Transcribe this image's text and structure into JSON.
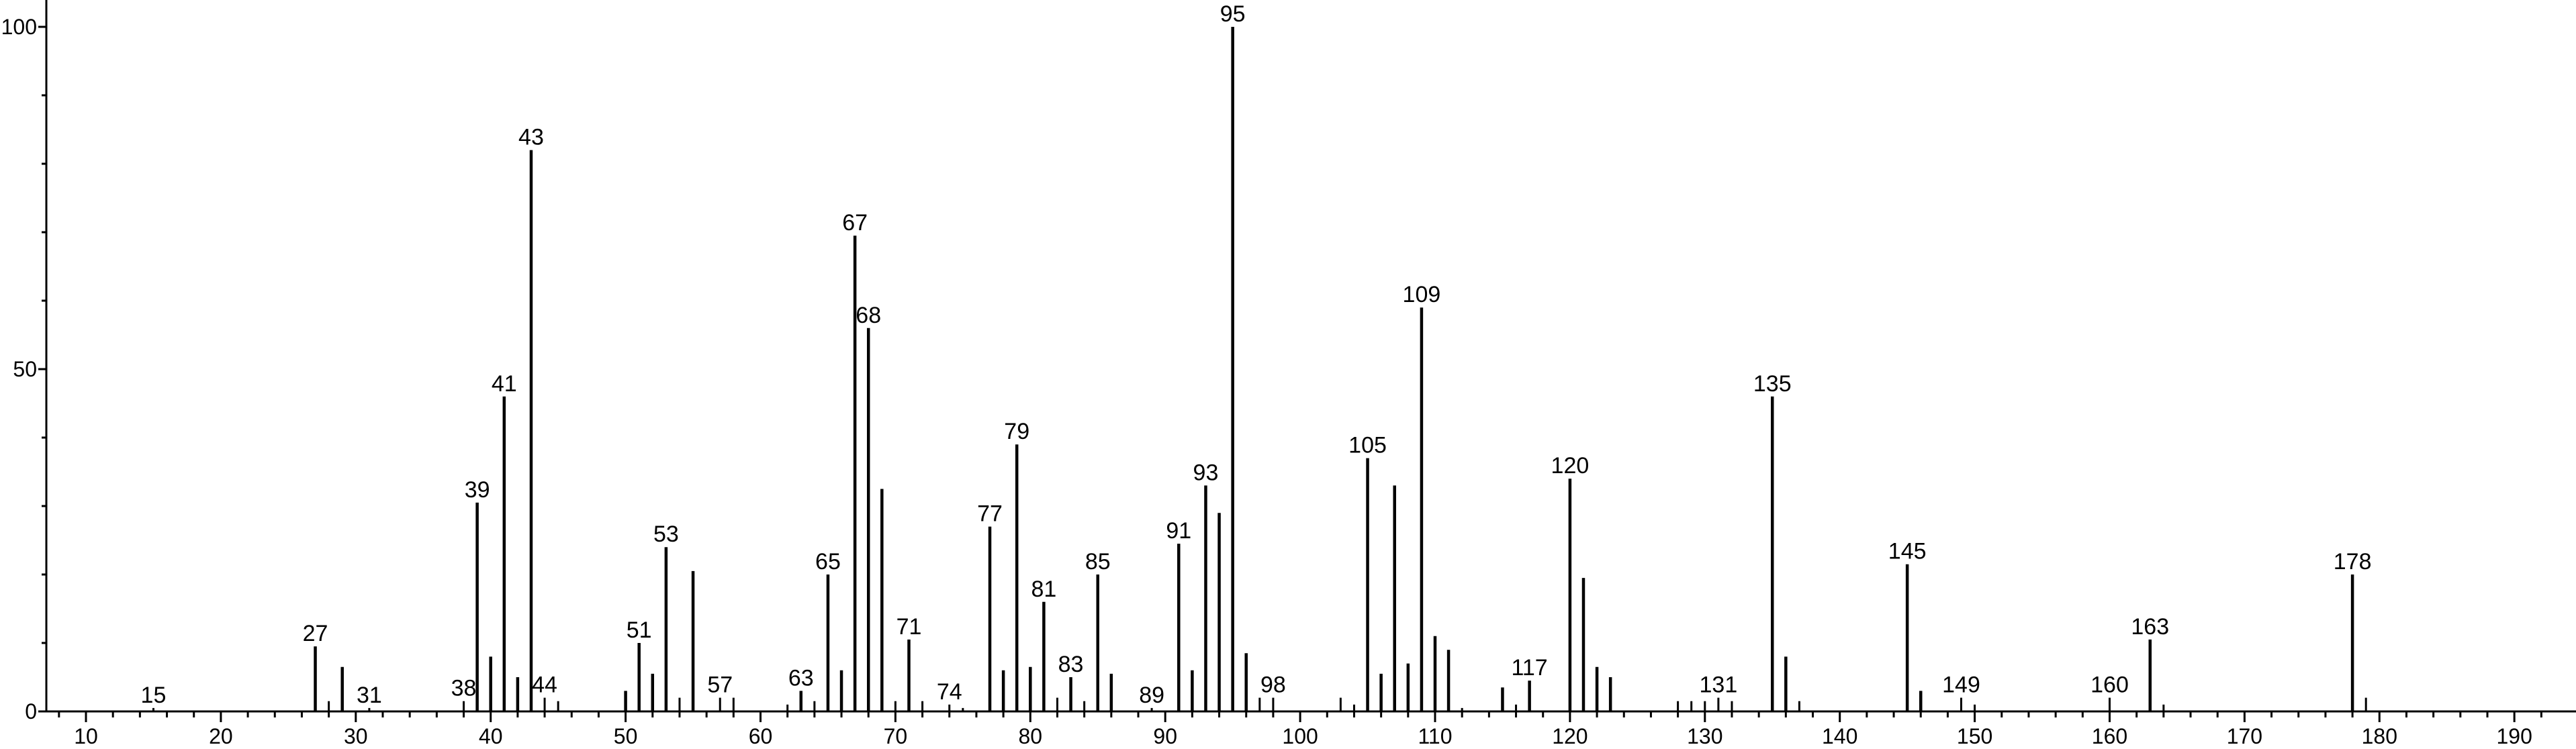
{
  "chart_data": {
    "type": "bar",
    "title": "",
    "xlabel": "",
    "ylabel": "",
    "xlim": [
      7,
      193
    ],
    "ylim": [
      0,
      100
    ],
    "grid": false,
    "x_ticks": [
      10,
      20,
      30,
      40,
      50,
      60,
      70,
      80,
      90,
      100,
      110,
      120,
      130,
      140,
      150,
      160,
      170,
      180,
      190
    ],
    "y_ticks": [
      0,
      50,
      100
    ],
    "peaks": [
      {
        "mz": 15,
        "intensity": 0.5,
        "label": "15"
      },
      {
        "mz": 27,
        "intensity": 9.5,
        "label": "27"
      },
      {
        "mz": 28,
        "intensity": 1.5
      },
      {
        "mz": 29,
        "intensity": 6.5
      },
      {
        "mz": 31,
        "intensity": 0.5,
        "label": "31"
      },
      {
        "mz": 38,
        "intensity": 1.5,
        "label": "38"
      },
      {
        "mz": 39,
        "intensity": 30.5,
        "label": "39"
      },
      {
        "mz": 40,
        "intensity": 8
      },
      {
        "mz": 41,
        "intensity": 46,
        "label": "41"
      },
      {
        "mz": 42,
        "intensity": 5
      },
      {
        "mz": 43,
        "intensity": 82,
        "label": "43"
      },
      {
        "mz": 44,
        "intensity": 2,
        "label": "44"
      },
      {
        "mz": 45,
        "intensity": 1.5
      },
      {
        "mz": 50,
        "intensity": 3
      },
      {
        "mz": 51,
        "intensity": 10,
        "label": "51"
      },
      {
        "mz": 52,
        "intensity": 5.5
      },
      {
        "mz": 53,
        "intensity": 24,
        "label": "53"
      },
      {
        "mz": 54,
        "intensity": 2
      },
      {
        "mz": 55,
        "intensity": 20.5
      },
      {
        "mz": 57,
        "intensity": 2,
        "label": "57"
      },
      {
        "mz": 58,
        "intensity": 2
      },
      {
        "mz": 62,
        "intensity": 1
      },
      {
        "mz": 63,
        "intensity": 3,
        "label": "63"
      },
      {
        "mz": 64,
        "intensity": 1.5
      },
      {
        "mz": 65,
        "intensity": 20,
        "label": "65"
      },
      {
        "mz": 66,
        "intensity": 6
      },
      {
        "mz": 67,
        "intensity": 69.5,
        "label": "67"
      },
      {
        "mz": 68,
        "intensity": 56,
        "label": "68"
      },
      {
        "mz": 69,
        "intensity": 32.5
      },
      {
        "mz": 70,
        "intensity": 1.5
      },
      {
        "mz": 71,
        "intensity": 10.5,
        "label": "71"
      },
      {
        "mz": 72,
        "intensity": 1.5
      },
      {
        "mz": 74,
        "intensity": 1,
        "label": "74"
      },
      {
        "mz": 75,
        "intensity": 0.5
      },
      {
        "mz": 77,
        "intensity": 27,
        "label": "77"
      },
      {
        "mz": 78,
        "intensity": 6
      },
      {
        "mz": 79,
        "intensity": 39,
        "label": "79"
      },
      {
        "mz": 80,
        "intensity": 6.5
      },
      {
        "mz": 81,
        "intensity": 16,
        "label": "81"
      },
      {
        "mz": 82,
        "intensity": 2
      },
      {
        "mz": 83,
        "intensity": 5,
        "label": "83"
      },
      {
        "mz": 84,
        "intensity": 1.5
      },
      {
        "mz": 85,
        "intensity": 20,
        "label": "85"
      },
      {
        "mz": 86,
        "intensity": 5.5
      },
      {
        "mz": 89,
        "intensity": 0.5,
        "label": "89"
      },
      {
        "mz": 91,
        "intensity": 24.5,
        "label": "91"
      },
      {
        "mz": 92,
        "intensity": 6
      },
      {
        "mz": 93,
        "intensity": 33,
        "label": "93"
      },
      {
        "mz": 94,
        "intensity": 29
      },
      {
        "mz": 95,
        "intensity": 100,
        "label": "95"
      },
      {
        "mz": 96,
        "intensity": 8.5
      },
      {
        "mz": 97,
        "intensity": 2
      },
      {
        "mz": 98,
        "intensity": 2,
        "label": "98"
      },
      {
        "mz": 103,
        "intensity": 2
      },
      {
        "mz": 104,
        "intensity": 1
      },
      {
        "mz": 105,
        "intensity": 37,
        "label": "105"
      },
      {
        "mz": 106,
        "intensity": 5.5
      },
      {
        "mz": 107,
        "intensity": 33
      },
      {
        "mz": 108,
        "intensity": 7
      },
      {
        "mz": 109,
        "intensity": 59,
        "label": "109"
      },
      {
        "mz": 110,
        "intensity": 11
      },
      {
        "mz": 111,
        "intensity": 9
      },
      {
        "mz": 112,
        "intensity": 0.5
      },
      {
        "mz": 115,
        "intensity": 3.5
      },
      {
        "mz": 116,
        "intensity": 1
      },
      {
        "mz": 117,
        "intensity": 4.5,
        "label": "117"
      },
      {
        "mz": 120,
        "intensity": 34,
        "label": "120"
      },
      {
        "mz": 121,
        "intensity": 19.5
      },
      {
        "mz": 122,
        "intensity": 6.5
      },
      {
        "mz": 123,
        "intensity": 5
      },
      {
        "mz": 128,
        "intensity": 1.5
      },
      {
        "mz": 129,
        "intensity": 1.5
      },
      {
        "mz": 130,
        "intensity": 1.5
      },
      {
        "mz": 131,
        "intensity": 2,
        "label": "131"
      },
      {
        "mz": 132,
        "intensity": 1.5
      },
      {
        "mz": 135,
        "intensity": 46,
        "label": "135"
      },
      {
        "mz": 136,
        "intensity": 8
      },
      {
        "mz": 137,
        "intensity": 1.5
      },
      {
        "mz": 145,
        "intensity": 21.5,
        "label": "145"
      },
      {
        "mz": 146,
        "intensity": 3
      },
      {
        "mz": 149,
        "intensity": 2,
        "label": "149"
      },
      {
        "mz": 150,
        "intensity": 1
      },
      {
        "mz": 160,
        "intensity": 2,
        "label": "160"
      },
      {
        "mz": 163,
        "intensity": 10.5,
        "label": "163"
      },
      {
        "mz": 164,
        "intensity": 1
      },
      {
        "mz": 178,
        "intensity": 20,
        "label": "178"
      },
      {
        "mz": 179,
        "intensity": 2
      }
    ]
  }
}
